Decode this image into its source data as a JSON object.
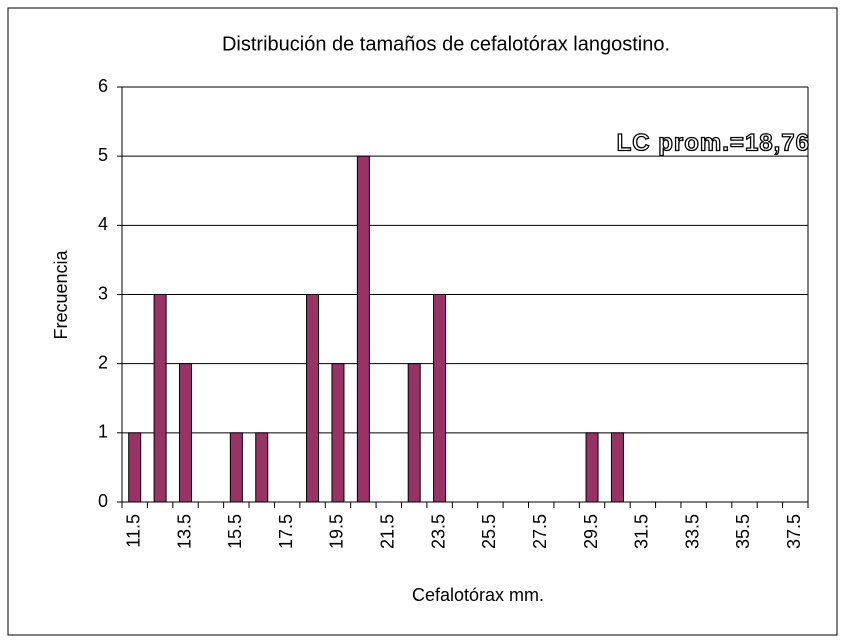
{
  "chart_data": {
    "type": "bar",
    "title": "Distribución de tamaños de cefalotórax langostino.",
    "x_label": "Cefalotórax mm.",
    "y_label": "Frecuencia",
    "annotation": "LC prom.=18,76",
    "categories": [
      "11.5",
      null,
      "13.5",
      null,
      "15.5",
      null,
      "17.5",
      null,
      "19.5",
      null,
      "21.5",
      null,
      "23.5",
      null,
      "25.5",
      null,
      "27.5",
      null,
      "29.5",
      null,
      "31.5",
      null,
      "33.5",
      null,
      "35.5",
      null,
      "37.5"
    ],
    "values": [
      1,
      3,
      2,
      0,
      1,
      1,
      0,
      3,
      2,
      5,
      0,
      2,
      3,
      0,
      0,
      0,
      0,
      0,
      1,
      1,
      0,
      0,
      0,
      0,
      0,
      0,
      0
    ],
    "color": "#993366",
    "ylim": [
      0,
      6
    ],
    "yticks": [
      0,
      1,
      2,
      3,
      4,
      5,
      6
    ],
    "grid": true
  }
}
